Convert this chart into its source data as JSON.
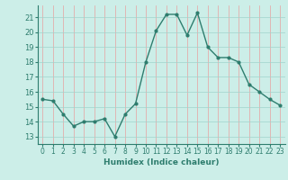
{
  "xlabel": "Humidex (Indice chaleur)",
  "x": [
    0,
    1,
    2,
    3,
    4,
    5,
    6,
    7,
    8,
    9,
    10,
    11,
    12,
    13,
    14,
    15,
    16,
    17,
    18,
    19,
    20,
    21,
    22,
    23
  ],
  "y": [
    15.5,
    15.4,
    14.5,
    13.7,
    14.0,
    14.0,
    14.2,
    13.0,
    14.5,
    15.2,
    18.0,
    20.1,
    21.2,
    21.2,
    19.8,
    21.3,
    19.0,
    18.3,
    18.3,
    18.0,
    16.5,
    16.0,
    15.5,
    15.1
  ],
  "line_color": "#2e7d6e",
  "marker": "o",
  "marker_size": 2.0,
  "line_width": 1.0,
  "bg_color": "#cceee8",
  "grid_color_x": "#e8a0a0",
  "grid_color_y": "#a0d4cc",
  "tick_color": "#2e7d6e",
  "label_color": "#2e7d6e",
  "ylim": [
    12.5,
    21.8
  ],
  "yticks": [
    13,
    14,
    15,
    16,
    17,
    18,
    19,
    20,
    21
  ],
  "xlim": [
    -0.5,
    23.5
  ],
  "xticks": [
    0,
    1,
    2,
    3,
    4,
    5,
    6,
    7,
    8,
    9,
    10,
    11,
    12,
    13,
    14,
    15,
    16,
    17,
    18,
    19,
    20,
    21,
    22,
    23
  ]
}
